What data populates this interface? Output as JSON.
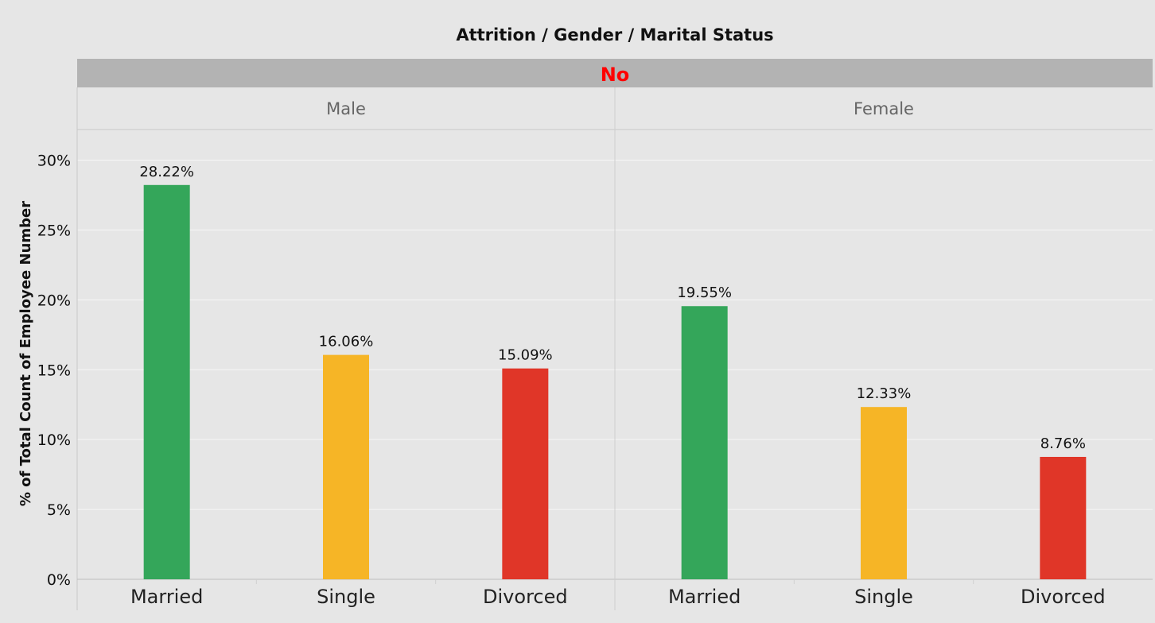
{
  "chart_data": {
    "type": "bar",
    "title": "Attrition / Gender / Marital Status",
    "top_header": "No",
    "panels": [
      {
        "name": "Male",
        "categories": [
          "Married",
          "Single",
          "Divorced"
        ],
        "values": [
          28.22,
          16.06,
          15.09
        ],
        "labels": [
          "28.22%",
          "16.06%",
          "15.09%"
        ]
      },
      {
        "name": "Female",
        "categories": [
          "Married",
          "Single",
          "Divorced"
        ],
        "values": [
          19.55,
          12.33,
          8.76
        ],
        "labels": [
          "19.55%",
          "12.33%",
          "8.76%"
        ]
      }
    ],
    "ylabel": "% of Total Count of Employee Number",
    "ylim": [
      0,
      32
    ],
    "y_ticks": [
      0,
      5,
      10,
      15,
      20,
      25,
      30
    ],
    "y_tick_labels": [
      "0%",
      "5%",
      "10%",
      "15%",
      "20%",
      "25%",
      "30%"
    ],
    "grid": true,
    "colors": {
      "Married": "#34a65a",
      "Single": "#f6b526",
      "Divorced": "#e03628"
    },
    "header_text_color": "#ff0000"
  }
}
